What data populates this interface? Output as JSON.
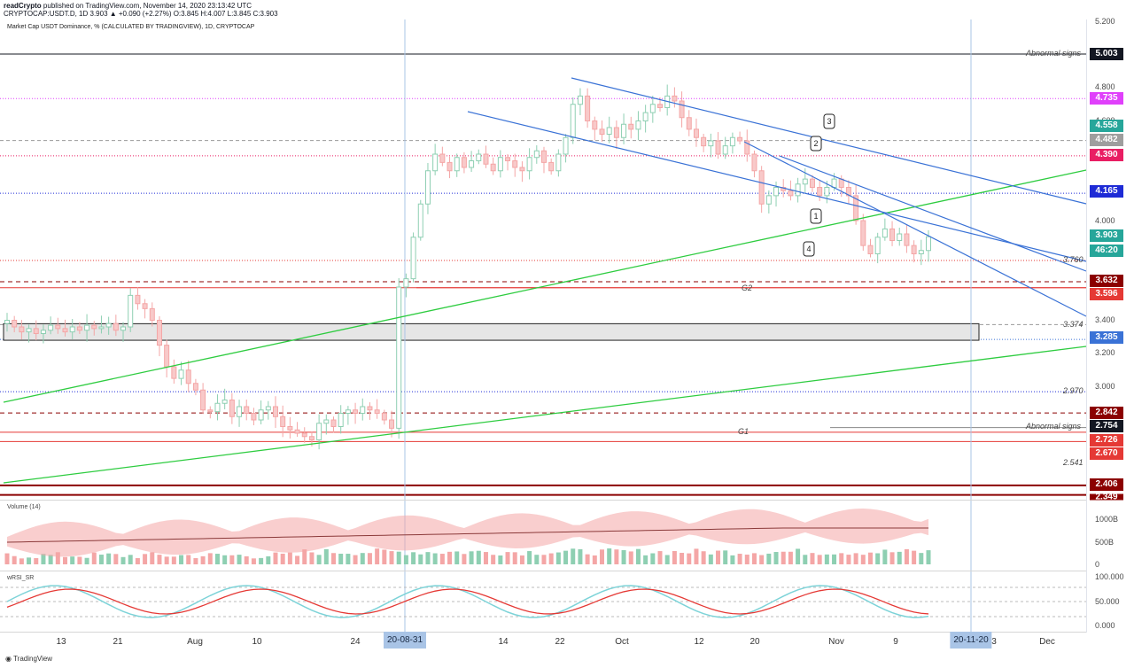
{
  "header": {
    "author": "readCrypto",
    "published_text": "published on TradingView.com, November 14, 2020 23:13:42 UTC",
    "symbol_line": "CRYPTOCAP:USDT.D, 1D 3.903 ▲ +0.090 (+2.27%) O:3.845 H:4.007 L:3.845 C:3.903"
  },
  "main_pane": {
    "title": "Market Cap USDT Dominance, % (CALCULATED BY TRADINGVIEW), 1D, CRYPTOCAP",
    "price_ticks": [
      "5.200",
      "4.800",
      "4.600",
      "4.000",
      "3.400",
      "3.200",
      "3.000"
    ],
    "badges": [
      {
        "text": "5.003",
        "color": "#131722"
      },
      {
        "text": "4.735",
        "color": "#e040fb"
      },
      {
        "text": "4.558",
        "color": "#26a69a"
      },
      {
        "text": "4.482",
        "color": "#9e9e9e"
      },
      {
        "text": "4.390",
        "color": "#e91e63"
      },
      {
        "text": "4.165",
        "color": "#1e2bd6"
      },
      {
        "text": "3.903",
        "color": "#26a69a"
      },
      {
        "text": "46:20",
        "color": "#26a69a"
      },
      {
        "text": "3.632",
        "color": "#8b0000"
      },
      {
        "text": "3.596",
        "color": "#e53935"
      },
      {
        "text": "3.285",
        "color": "#3a72d6"
      },
      {
        "text": "2.842",
        "color": "#8b0000"
      },
      {
        "text": "2.754",
        "color": "#131722"
      },
      {
        "text": "2.726",
        "color": "#e53935"
      },
      {
        "text": "2.670",
        "color": "#e53935"
      },
      {
        "text": "2.406",
        "color": "#8b0000"
      },
      {
        "text": "2.349",
        "color": "#8b0000"
      }
    ],
    "annotations": {
      "abnormal_top": "Abnormal signs",
      "abnormal_bottom": "Abnormal signs",
      "g1": "G1",
      "g2": "G2",
      "lvl_3760": "3.760",
      "lvl_3374": "3.374",
      "lvl_2970": "2.970",
      "lvl_2541": "2.541"
    },
    "callouts": [
      "1",
      "2",
      "3",
      "4"
    ]
  },
  "volume_pane": {
    "title": "Volume (14)",
    "ticks": [
      "1000B",
      "500B",
      "0"
    ]
  },
  "rsi_pane": {
    "title": "wRSI_SR",
    "ticks": [
      "100.000",
      "50.000",
      "0.000"
    ]
  },
  "x_axis": {
    "labels": [
      "13",
      "21",
      "Aug",
      "10",
      "24",
      "14",
      "22",
      "Oct",
      "12",
      "20",
      "Nov",
      "9",
      "3",
      "Dec"
    ],
    "highlight_left": "20-08-31",
    "highlight_right": "20-11-20"
  },
  "footer": {
    "brand": "TradingView"
  },
  "chart_data": {
    "type": "candlestick",
    "symbol": "CRYPTOCAP:USDT.D",
    "interval": "1D",
    "last": {
      "open": 3.845,
      "high": 4.007,
      "low": 3.845,
      "close": 3.903,
      "change": 0.09,
      "change_pct": 2.27
    },
    "horizontal_levels": [
      5.003,
      4.735,
      4.558,
      4.482,
      4.39,
      4.165,
      3.76,
      3.632,
      3.596,
      3.374,
      3.285,
      2.97,
      2.842,
      2.754,
      2.726,
      2.67,
      2.541,
      2.406,
      2.349
    ],
    "closes": [
      3.4,
      3.36,
      3.33,
      3.35,
      3.32,
      3.34,
      3.37,
      3.35,
      3.33,
      3.36,
      3.34,
      3.37,
      3.35,
      3.36,
      3.38,
      3.34,
      3.36,
      3.55,
      3.5,
      3.47,
      3.4,
      3.25,
      3.12,
      3.05,
      3.1,
      3.02,
      2.98,
      2.86,
      2.85,
      2.9,
      2.92,
      2.82,
      2.88,
      2.84,
      2.8,
      2.86,
      2.88,
      2.82,
      2.76,
      2.74,
      2.72,
      2.7,
      2.68,
      2.78,
      2.8,
      2.76,
      2.84,
      2.86,
      2.84,
      2.88,
      2.86,
      2.84,
      2.8,
      2.75,
      3.6,
      3.65,
      3.9,
      4.1,
      4.3,
      4.4,
      4.35,
      4.3,
      4.38,
      4.32,
      4.36,
      4.4,
      4.34,
      4.3,
      4.38,
      4.36,
      4.32,
      4.3,
      4.38,
      4.42,
      4.35,
      4.3,
      4.4,
      4.5,
      4.7,
      4.75,
      4.6,
      4.55,
      4.52,
      4.56,
      4.5,
      4.58,
      4.55,
      4.6,
      4.65,
      4.7,
      4.68,
      4.75,
      4.72,
      4.62,
      4.55,
      4.5,
      4.45,
      4.48,
      4.4,
      4.45,
      4.5,
      4.48,
      4.4,
      4.3,
      4.1,
      4.15,
      4.2,
      4.18,
      4.15,
      4.22,
      4.25,
      4.2,
      4.15,
      4.2,
      4.25,
      4.2,
      4.15,
      4.0,
      3.85,
      3.8,
      3.9,
      3.95,
      3.88,
      3.92,
      3.85,
      3.8,
      3.82,
      3.903
    ],
    "volume_ticks": [
      "1000B",
      "500B",
      "0"
    ],
    "rsi_ticks": [
      "100.000",
      "50.000",
      "0.000"
    ]
  }
}
